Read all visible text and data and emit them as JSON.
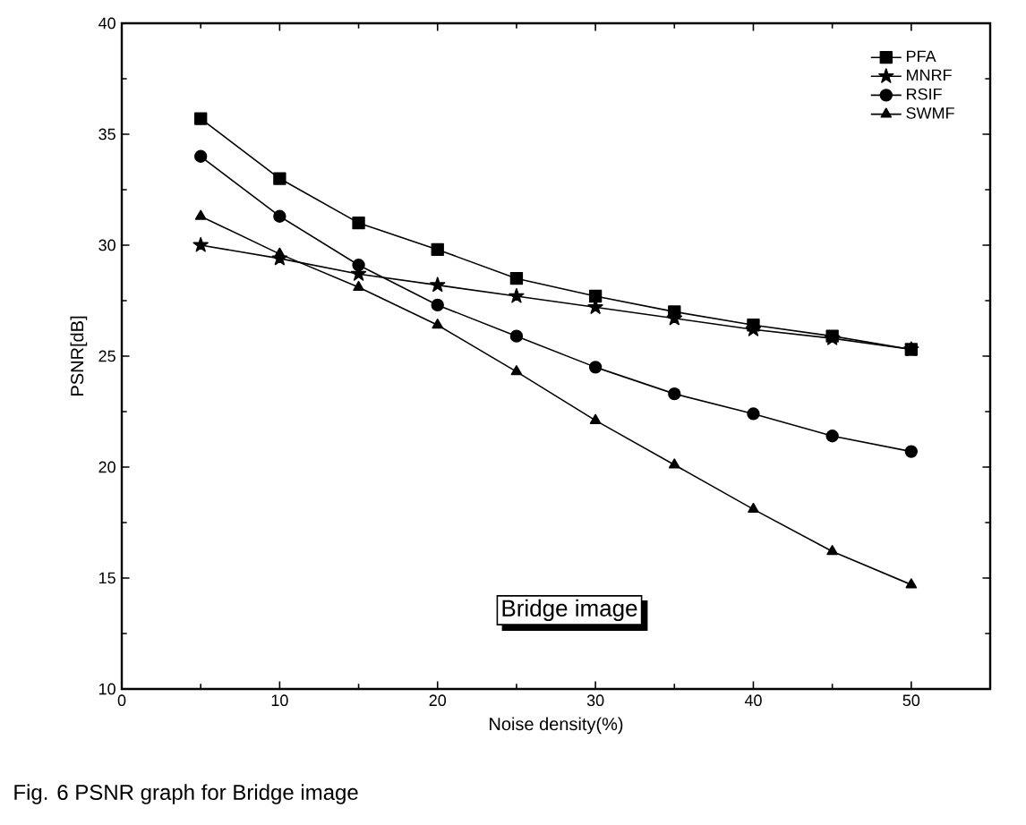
{
  "chart_data": {
    "type": "line",
    "xlabel": "Noise density(%)",
    "ylabel": "PSNR[dB]",
    "x": [
      5,
      10,
      15,
      20,
      25,
      30,
      35,
      40,
      45,
      50
    ],
    "series": [
      {
        "name": "PFA",
        "color": "#000000",
        "marker": "square",
        "values": [
          35.7,
          33.0,
          31.0,
          29.8,
          28.5,
          27.7,
          27.0,
          26.4,
          25.9,
          25.3
        ]
      },
      {
        "name": "MNRF",
        "color": "#000000",
        "marker": "star",
        "values": [
          30.0,
          29.4,
          28.7,
          28.2,
          27.7,
          27.2,
          26.7,
          26.2,
          25.8,
          25.3
        ]
      },
      {
        "name": "RSIF",
        "color": "#000000",
        "marker": "circle",
        "values": [
          34.0,
          31.3,
          29.1,
          27.3,
          25.9,
          24.5,
          23.3,
          22.4,
          21.4,
          20.7
        ]
      },
      {
        "name": "SWMF",
        "color": "#000000",
        "marker": "triangle",
        "values": [
          31.3,
          29.6,
          28.1,
          26.4,
          24.3,
          22.1,
          20.1,
          18.1,
          16.2,
          14.7
        ]
      }
    ],
    "xlim": [
      0,
      55
    ],
    "ylim": [
      10,
      40
    ],
    "xticks": [
      0,
      10,
      20,
      30,
      40,
      50
    ],
    "yticks": [
      10,
      15,
      20,
      25,
      30,
      35,
      40
    ],
    "legend": "top right",
    "grid": false,
    "line_style": "solid",
    "annotations": [
      "Bridge image",
      "Fig. 6 PSNR graph for Bridge image"
    ]
  }
}
